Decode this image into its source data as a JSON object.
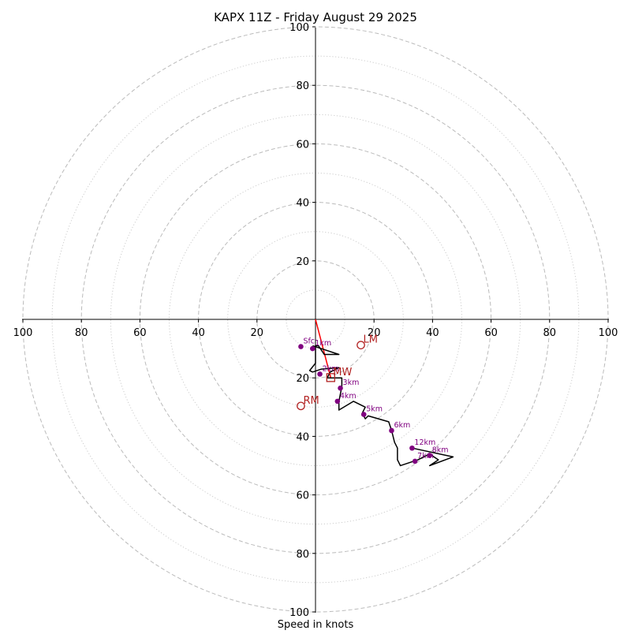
{
  "chart_data": {
    "type": "hodograph",
    "title": "KAPX 11Z - Friday August 29 2025",
    "xlabel": "Speed in knots",
    "range": 100,
    "rings_major": [
      20,
      40,
      60,
      80,
      100
    ],
    "rings_minor": [
      10,
      30,
      50,
      70,
      90
    ],
    "tick_labels": [
      "100",
      "80",
      "60",
      "40",
      "20",
      "20",
      "40",
      "60",
      "80",
      "100"
    ],
    "y_tick_labels_up": [
      "20",
      "40",
      "60",
      "80",
      "100"
    ],
    "y_tick_labels_down": [
      "20",
      "40",
      "60",
      "80",
      "100"
    ],
    "x_tick_values": [
      -100,
      -80,
      -60,
      -40,
      -20,
      20,
      40,
      60,
      80,
      100
    ],
    "y_tick_values_up": [
      20,
      40,
      60,
      80,
      100
    ],
    "y_tick_values_down": [
      -20,
      -40,
      -60,
      -80,
      -100
    ],
    "trace": [
      [
        -1,
        -9
      ],
      [
        8,
        -12
      ],
      [
        3,
        -12
      ],
      [
        1,
        -9
      ],
      [
        0,
        -9
      ],
      [
        0,
        -15
      ],
      [
        -2,
        -17.5
      ],
      [
        -1,
        -18
      ],
      [
        2,
        -17
      ],
      [
        8,
        -16.5
      ],
      [
        5,
        -18
      ],
      [
        4,
        -20
      ],
      [
        9,
        -20
      ],
      [
        9,
        -23
      ],
      [
        8,
        -28
      ],
      [
        8,
        -31
      ],
      [
        13,
        -28
      ],
      [
        17,
        -30
      ],
      [
        16,
        -32
      ],
      [
        17,
        -34
      ],
      [
        18,
        -33
      ],
      [
        25,
        -35
      ],
      [
        26,
        -38
      ],
      [
        27,
        -42
      ],
      [
        28,
        -44
      ],
      [
        28,
        -48
      ],
      [
        29,
        -50
      ],
      [
        32,
        -49
      ],
      [
        35,
        -48
      ],
      [
        39,
        -46
      ],
      [
        42,
        -48
      ],
      [
        39,
        -50
      ],
      [
        47,
        -47
      ],
      [
        33,
        -44
      ]
    ],
    "height_points": [
      {
        "label": "Sfc",
        "u": -5,
        "v": -9.3
      },
      {
        "label": "1km",
        "u": -1,
        "v": -10
      },
      {
        "label": "2km",
        "u": 1.5,
        "v": -18.7
      },
      {
        "label": "3km",
        "u": 8.5,
        "v": -23.5
      },
      {
        "label": "4km",
        "u": 7.5,
        "v": -28
      },
      {
        "label": "5km",
        "u": 16.5,
        "v": -32.5
      },
      {
        "label": "6km",
        "u": 26,
        "v": -38
      },
      {
        "label": "7km",
        "u": 34,
        "v": -48.5
      },
      {
        "label": "8km",
        "u": 39,
        "v": -46.5
      },
      {
        "label": "12km",
        "u": 33,
        "v": -44
      }
    ],
    "storm_motion": [
      {
        "label": "LM",
        "u": 15.5,
        "v": -8.8
      },
      {
        "label": "MW",
        "u": 5.2,
        "v": -19.9
      },
      {
        "label": "RM",
        "u": -5,
        "v": -29.6
      }
    ],
    "shear_vector": {
      "u": 5.2,
      "v": -19.9
    },
    "colors": {
      "trace": "#000000",
      "height_points": "#800080",
      "storm_motion": "#b22222",
      "shear_vector": "#ff0000",
      "grid": "#bbbbbb"
    }
  }
}
